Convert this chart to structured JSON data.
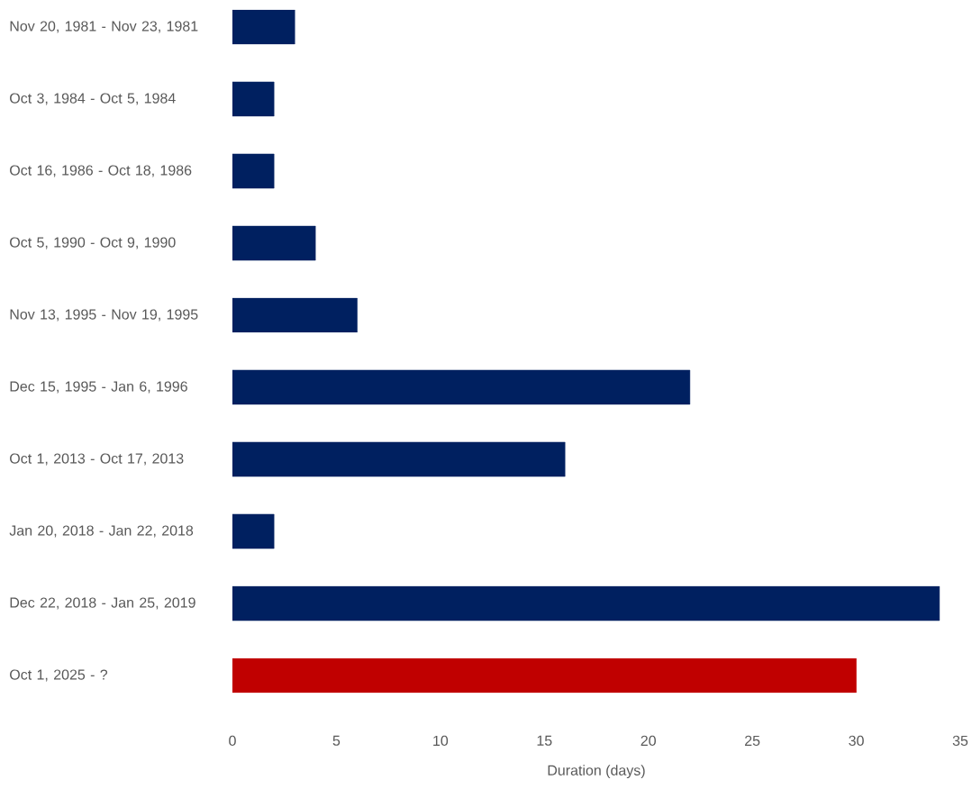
{
  "chart_data": {
    "type": "bar",
    "orientation": "horizontal",
    "xlabel": "Duration (days)",
    "categories": [
      "Nov 20, 1981 - Nov 23, 1981",
      "Oct 3, 1984 - Oct 5, 1984",
      "Oct 16, 1986 - Oct 18, 1986",
      "Oct 5, 1990 - Oct 9, 1990",
      "Nov 13, 1995 - Nov 19, 1995",
      "Dec 15, 1995 - Jan 6, 1996",
      "Oct 1, 2013 - Oct 17, 2013",
      "Jan 20, 2018 - Jan 22, 2018",
      "Dec 22, 2018 - Jan 25, 2019",
      "Oct 1, 2025 - ?"
    ],
    "values": [
      3,
      2,
      2,
      4,
      6,
      22,
      16,
      2,
      34,
      30
    ],
    "colors": [
      "#002060",
      "#002060",
      "#002060",
      "#002060",
      "#002060",
      "#002060",
      "#002060",
      "#002060",
      "#002060",
      "#c00000"
    ],
    "xlim": [
      0,
      35
    ],
    "xticks": [
      0,
      5,
      10,
      15,
      20,
      25,
      30,
      35
    ]
  }
}
